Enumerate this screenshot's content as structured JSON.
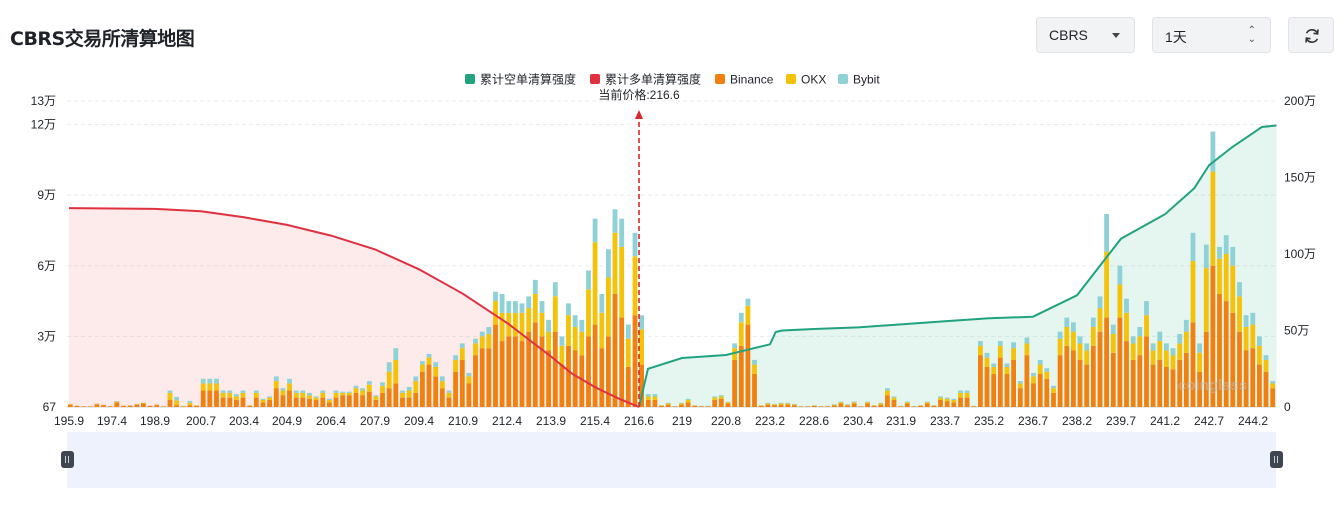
{
  "page": {
    "title": "CBRS交易所清算地图",
    "symbol_select": "CBRS",
    "period_select": "1天",
    "refresh_icon": "refresh-icon",
    "watermark": "coinglass"
  },
  "chart_data": {
    "type": "bar",
    "title": "",
    "current_price_label": "当前价格:216.6",
    "current_price": 216.6,
    "x_tick_labels": [
      "195.9",
      "197.4",
      "198.9",
      "200.7",
      "203.4",
      "204.9",
      "206.4",
      "207.9",
      "209.4",
      "210.9",
      "212.4",
      "213.9",
      "215.4",
      "216.6",
      "219",
      "220.8",
      "223.2",
      "228.6",
      "230.4",
      "231.9",
      "233.7",
      "235.2",
      "236.7",
      "238.2",
      "239.7",
      "241.2",
      "242.7",
      "244.2"
    ],
    "y_left_ticks": [
      "67",
      "3万",
      "6万",
      "9万",
      "12万",
      "13万"
    ],
    "y_right_ticks": [
      "0",
      "50万",
      "100万",
      "150万",
      "200万"
    ],
    "y_left_range": [
      67,
      130000
    ],
    "y_right_range": [
      0,
      2000000
    ],
    "legend": [
      {
        "name": "累计空单清算强度",
        "color": "#21a37f"
      },
      {
        "name": "累计多单清算强度",
        "color": "#e03141"
      },
      {
        "name": "Binance",
        "color": "#f0800f"
      },
      {
        "name": "OKX",
        "color": "#f5c20a"
      },
      {
        "name": "Bybit",
        "color": "#8ed1d6"
      }
    ],
    "bar_series": [
      {
        "name": "Binance",
        "color": "#f0800f",
        "values": [
          1000,
          500,
          200,
          200,
          1200,
          800,
          300,
          2000,
          500,
          600,
          1000,
          1500,
          500,
          800,
          200,
          3000,
          800,
          200,
          800,
          500,
          7000,
          7000,
          7000,
          4000,
          4000,
          3000,
          4000,
          500,
          4000,
          2000,
          3000,
          8000,
          5000,
          7000,
          4000,
          4000,
          3500,
          3000,
          4000,
          2000,
          4000,
          5000,
          5000,
          6000,
          5000,
          6500,
          3000,
          6000,
          8000,
          10000,
          4000,
          4000,
          6000,
          15000,
          18000,
          13000,
          8000,
          4000,
          15000,
          20000,
          10000,
          22000,
          25000,
          25000,
          35000,
          28000,
          30000,
          30000,
          28000,
          32000,
          36000,
          30000,
          24000,
          32000,
          18000,
          26000,
          24000,
          22000,
          30000,
          35000,
          25000,
          30000,
          48000,
          38000,
          17000,
          39000,
          18000,
          3000,
          3000,
          500,
          1000,
          200,
          1000,
          2000,
          500,
          300,
          300,
          3000,
          3500,
          1500,
          20000,
          26000,
          35000,
          14000,
          500,
          1000,
          800,
          1000,
          1000,
          800,
          200,
          200,
          500,
          200,
          300,
          700,
          1500,
          700,
          1500,
          200,
          1500,
          500,
          1000,
          5000,
          3000,
          300,
          1500,
          200,
          500,
          1500,
          500,
          3000,
          2500,
          2000,
          4000,
          4000,
          300,
          22000,
          17000,
          14000,
          21000,
          14000,
          20000,
          8000,
          22000,
          10000,
          14000,
          12000,
          6000,
          22000,
          26000,
          24000,
          20000,
          18000,
          26000,
          32000,
          38000,
          23000,
          38000,
          28000,
          20000,
          22000,
          30000,
          18000,
          20000,
          17000,
          16000,
          20000,
          23000,
          36000,
          15000,
          32000,
          60000,
          48000,
          45000,
          40000,
          32000,
          24000,
          25000,
          18000,
          15000,
          8000
        ]
      },
      {
        "name": "OKX",
        "color": "#f5c20a",
        "values": [
          200,
          100,
          100,
          100,
          200,
          100,
          100,
          300,
          100,
          100,
          200,
          300,
          100,
          200,
          100,
          3000,
          2000,
          200,
          1000,
          200,
          3000,
          3000,
          3000,
          2000,
          2000,
          1500,
          2000,
          200,
          2000,
          1000,
          1000,
          3000,
          2000,
          3000,
          2000,
          2000,
          1500,
          1000,
          2000,
          1000,
          2000,
          1000,
          1000,
          2000,
          2000,
          3000,
          1500,
          3000,
          7000,
          10000,
          2000,
          3000,
          5000,
          3000,
          3000,
          4000,
          3000,
          2000,
          5000,
          5000,
          3000,
          5000,
          5000,
          6000,
          10000,
          12000,
          10000,
          10000,
          12000,
          10000,
          12000,
          10000,
          8000,
          15000,
          8000,
          13000,
          10000,
          10000,
          20000,
          35000,
          15000,
          25000,
          26000,
          30000,
          12000,
          25000,
          15000,
          1500,
          1500,
          200,
          500,
          100,
          500,
          1000,
          200,
          100,
          100,
          1000,
          1000,
          500,
          5000,
          10000,
          8000,
          4000,
          200,
          500,
          300,
          500,
          500,
          300,
          100,
          100,
          200,
          100,
          100,
          300,
          500,
          300,
          500,
          100,
          500,
          200,
          500,
          2000,
          1000,
          100,
          500,
          100,
          200,
          500,
          200,
          1000,
          1000,
          1000,
          2000,
          2000,
          100,
          4000,
          4000,
          3000,
          5000,
          3000,
          5000,
          2000,
          5000,
          3000,
          4000,
          3000,
          2000,
          7000,
          8000,
          8000,
          7000,
          6000,
          8000,
          10000,
          28000,
          8000,
          14000,
          12000,
          7000,
          8000,
          9000,
          6000,
          8000,
          7000,
          6000,
          7000,
          9000,
          26000,
          8000,
          27000,
          40000,
          15000,
          20000,
          20000,
          15000,
          10000,
          10000,
          8000,
          5000,
          2000
        ]
      },
      {
        "name": "Bybit",
        "color": "#8ed1d6",
        "values": [
          100,
          50,
          50,
          50,
          100,
          50,
          50,
          200,
          50,
          50,
          100,
          100,
          50,
          100,
          50,
          1000,
          1500,
          100,
          800,
          100,
          2000,
          2000,
          2000,
          1000,
          1000,
          1000,
          1000,
          100,
          1000,
          500,
          500,
          2000,
          1000,
          2000,
          1000,
          1000,
          1000,
          500,
          1000,
          500,
          1000,
          500,
          500,
          1000,
          1000,
          1500,
          500,
          1500,
          4000,
          5000,
          1000,
          1500,
          2000,
          1500,
          1500,
          2000,
          2000,
          1000,
          2000,
          2000,
          1500,
          2000,
          2000,
          3000,
          4000,
          8000,
          5000,
          5000,
          4000,
          5000,
          6000,
          5000,
          5000,
          6000,
          4000,
          5000,
          5000,
          5000,
          8000,
          10000,
          8000,
          12000,
          10000,
          12000,
          6000,
          10000,
          6000,
          1000,
          1000,
          100,
          300,
          100,
          300,
          500,
          100,
          100,
          100,
          500,
          500,
          200,
          2000,
          4000,
          3000,
          2000,
          100,
          300,
          200,
          300,
          300,
          200,
          100,
          100,
          100,
          100,
          100,
          200,
          300,
          200,
          300,
          100,
          300,
          100,
          300,
          1000,
          500,
          100,
          300,
          100,
          100,
          300,
          100,
          500,
          500,
          500,
          1000,
          1000,
          100,
          2000,
          2000,
          1500,
          2000,
          1500,
          2500,
          1000,
          2500,
          1500,
          2000,
          1500,
          1000,
          3000,
          4000,
          4000,
          3000,
          3000,
          4000,
          5000,
          16000,
          4000,
          8000,
          6000,
          3000,
          4000,
          6000,
          3000,
          4000,
          3000,
          3000,
          4000,
          5000,
          12000,
          4000,
          10000,
          17000,
          5000,
          8000,
          8000,
          6000,
          5000,
          5000,
          4000,
          2000,
          1000
        ]
      }
    ],
    "long_cumulative": {
      "name": "累计多单清算强度",
      "x": [
        195.9,
        198.9,
        200.7,
        203.4,
        204.9,
        206.4,
        207.9,
        209.4,
        210.9,
        212.4,
        213.9,
        214.6,
        215.4,
        216.0,
        216.6
      ],
      "y": [
        1300000,
        1295000,
        1280000,
        1240000,
        1190000,
        1120000,
        1030000,
        900000,
        740000,
        550000,
        330000,
        220000,
        130000,
        60000,
        0
      ]
    },
    "short_cumulative": {
      "name": "累计空单清算强度",
      "x": [
        216.6,
        217.1,
        219,
        220.8,
        223.2,
        223.9,
        224.7,
        228.6,
        230.4,
        231.9,
        233.7,
        235.2,
        236.7,
        238.2,
        239.7,
        241.2,
        242.2,
        242.7,
        243.5,
        244.2,
        244.5,
        245.0
      ],
      "y": [
        0,
        250000,
        320000,
        340000,
        410000,
        490000,
        500000,
        510000,
        520000,
        540000,
        560000,
        580000,
        590000,
        730000,
        1100000,
        1260000,
        1430000,
        1580000,
        1700000,
        1790000,
        1830000,
        1840000
      ]
    }
  }
}
